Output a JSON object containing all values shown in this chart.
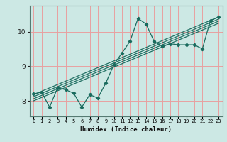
{
  "title": "",
  "xlabel": "Humidex (Indice chaleur)",
  "ylabel": "",
  "bg_color": "#cce8e4",
  "grid_color": "#e8a0a0",
  "line_color": "#1a6b5e",
  "x_data": [
    0,
    1,
    2,
    3,
    4,
    5,
    6,
    7,
    8,
    9,
    10,
    11,
    12,
    13,
    14,
    15,
    16,
    17,
    18,
    19,
    20,
    21,
    22,
    23
  ],
  "y_data": [
    8.2,
    8.25,
    7.82,
    8.38,
    8.32,
    8.22,
    7.82,
    8.18,
    8.08,
    8.52,
    9.05,
    9.38,
    9.72,
    10.38,
    10.22,
    9.72,
    9.58,
    9.65,
    9.62,
    9.62,
    9.62,
    9.5,
    10.32,
    10.42
  ],
  "yticks": [
    8,
    9,
    10
  ],
  "xlim": [
    -0.5,
    23.5
  ],
  "ylim": [
    7.55,
    10.75
  ],
  "reg_lines": [
    {
      "x0": 0,
      "y0": 8.18,
      "x1": 23,
      "y1": 10.42
    },
    {
      "x0": 0,
      "y0": 8.12,
      "x1": 23,
      "y1": 10.36
    },
    {
      "x0": 0,
      "y0": 8.06,
      "x1": 23,
      "y1": 10.3
    },
    {
      "x0": 0,
      "y0": 8.0,
      "x1": 23,
      "y1": 10.24
    }
  ]
}
